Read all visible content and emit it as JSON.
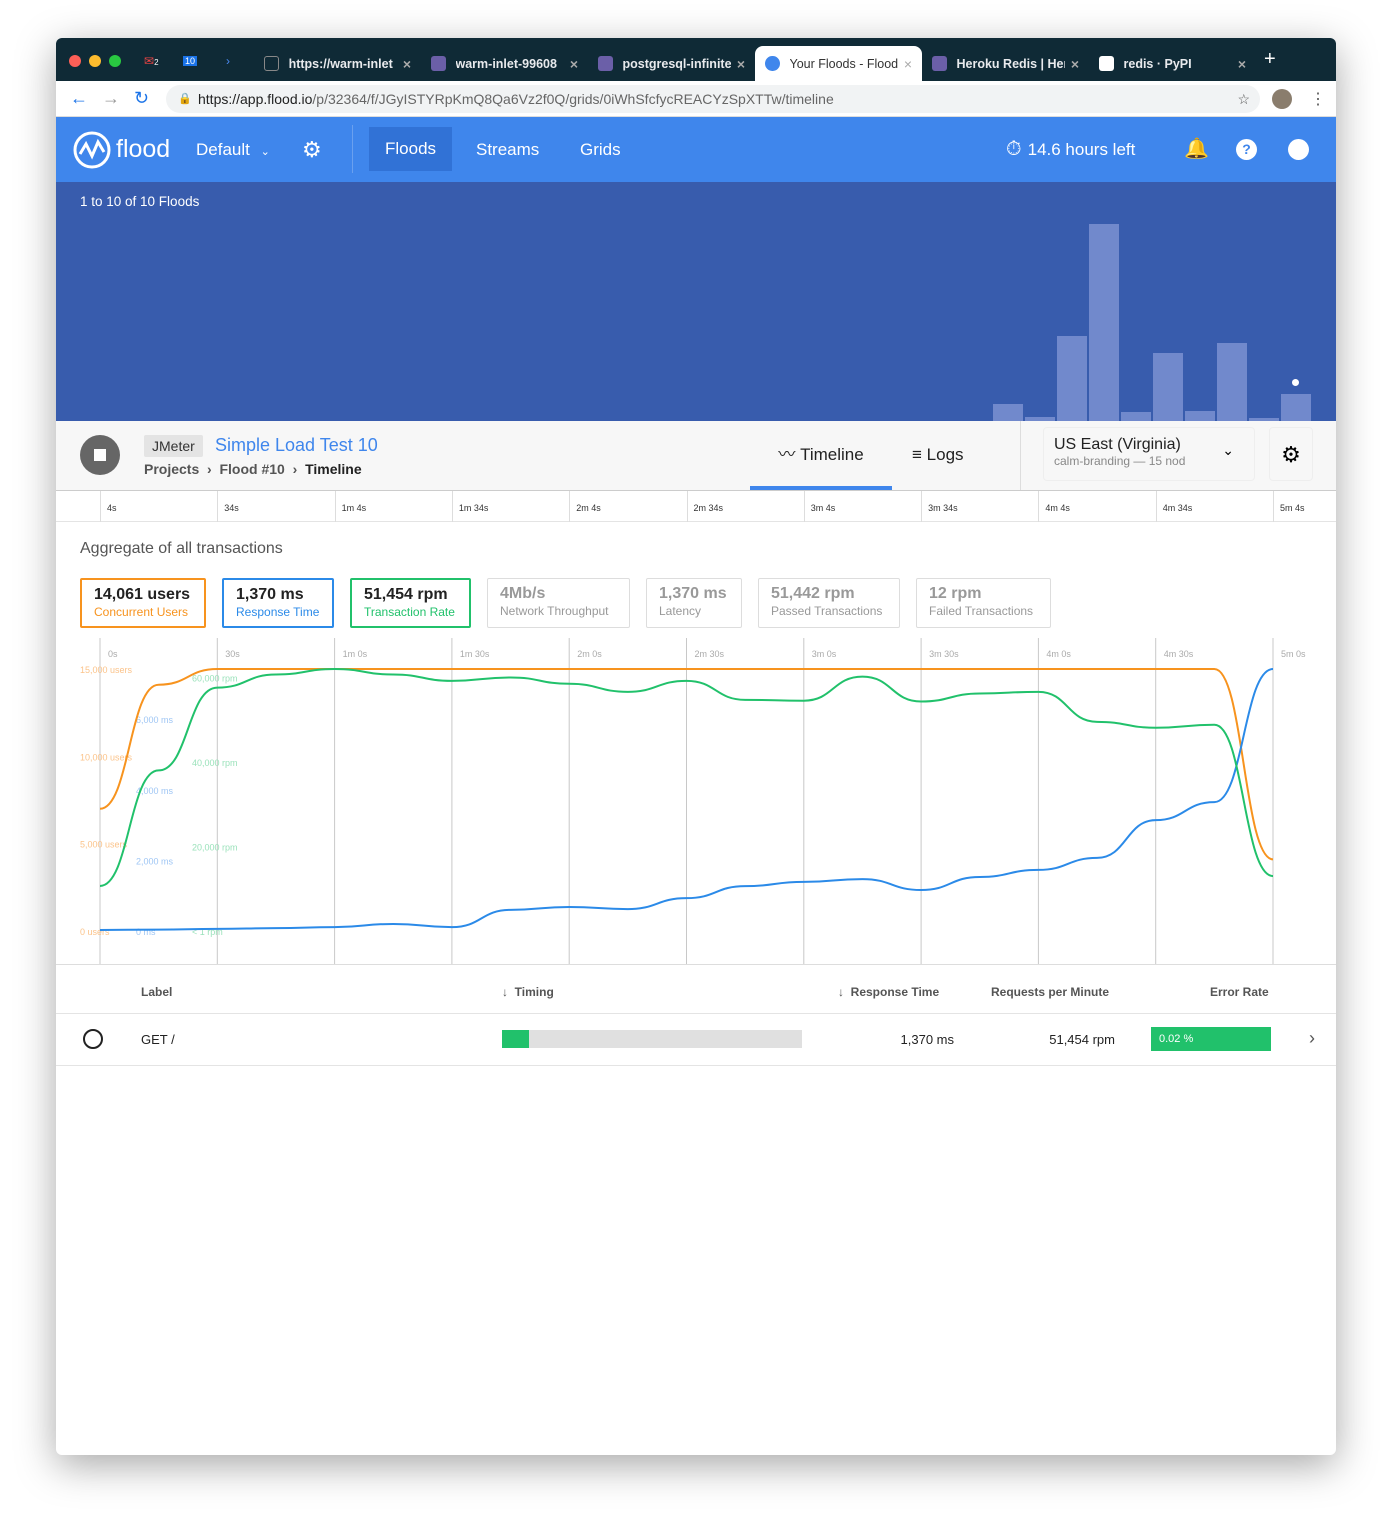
{
  "browser": {
    "pinned": [
      {
        "name": "gmail",
        "badge": "2"
      },
      {
        "name": "calendar",
        "badge": "10"
      },
      {
        "name": "terminal",
        "badge": ""
      }
    ],
    "tabs": [
      {
        "title": "https://warm-inlet",
        "icon": "page-icon",
        "active": false
      },
      {
        "title": "warm-inlet-99608",
        "icon": "heroku-icon",
        "active": false
      },
      {
        "title": "postgresql-infinite",
        "icon": "heroku-icon",
        "active": false
      },
      {
        "title": "Your Floods - Flood",
        "icon": "flood-icon",
        "active": true
      },
      {
        "title": "Heroku Redis | Her",
        "icon": "heroku-icon",
        "active": false
      },
      {
        "title": "redis · PyPI",
        "icon": "pypi-icon",
        "active": false
      }
    ],
    "url_host": "https://app.flood.io",
    "url_path": "/p/32364/f/JGyISTYRpKmQ8Qa6Vz2f0Q/grids/0iWhSfcfycREACYzSpXTTw/timeline"
  },
  "header": {
    "logo": "flood",
    "project": "Default",
    "nav": [
      "Floods",
      "Streams",
      "Grids"
    ],
    "active_nav": "Floods",
    "time_left": "14.6 hours left"
  },
  "banner": {
    "count_text": "1 to 10 of 10 Floods",
    "histogram": [
      17,
      4,
      85,
      197,
      9,
      68,
      10,
      78,
      3,
      27
    ]
  },
  "flood": {
    "tool": "JMeter",
    "name": "Simple Load Test 10",
    "breadcrumb": [
      "Projects",
      "Flood #10",
      "Timeline"
    ],
    "tabs": [
      "Timeline",
      "Logs"
    ],
    "active_tab": "Timeline",
    "region": "US East (Virginia)",
    "grid": "calm-branding — 15 nod"
  },
  "ruler": [
    "4s",
    "34s",
    "1m 4s",
    "1m 34s",
    "2m 4s",
    "2m 34s",
    "3m 4s",
    "3m 34s",
    "4m 4s",
    "4m 34s",
    "5m 4s"
  ],
  "aggregate_title": "Aggregate of all transactions",
  "stats": [
    {
      "value": "14,061 users",
      "label": "Concurrent Users",
      "color": "#f7931e"
    },
    {
      "value": "1,370 ms",
      "label": "Response Time",
      "color": "#2b8ae8"
    },
    {
      "value": "51,454 rpm",
      "label": "Transaction Rate",
      "color": "#21c16b"
    },
    {
      "value": "4Mb/s",
      "label": "Network Throughput",
      "color": ""
    },
    {
      "value": "1,370 ms",
      "label": "Latency",
      "color": ""
    },
    {
      "value": "51,442 rpm",
      "label": "Passed Transactions",
      "color": ""
    },
    {
      "value": "12 rpm",
      "label": "Failed Transactions",
      "color": ""
    }
  ],
  "chart_data": {
    "type": "line",
    "x_ticks": [
      "0s",
      "30s",
      "1m 0s",
      "1m 30s",
      "2m 0s",
      "2m 30s",
      "3m 0s",
      "3m 30s",
      "4m 0s",
      "4m 30s",
      "5m 0s"
    ],
    "xlim": [
      0,
      300
    ],
    "x": [
      0,
      15,
      30,
      45,
      60,
      75,
      90,
      105,
      120,
      135,
      150,
      165,
      180,
      195,
      210,
      225,
      240,
      255,
      270,
      285,
      300
    ],
    "series": [
      {
        "axis": "users",
        "color": "#f7931e",
        "ticks": [
          "0 users",
          "5,000 users",
          "10,000 users",
          "15,000 users"
        ],
        "ylim": [
          0,
          15000
        ],
        "values": [
          7000,
          14100,
          15000,
          15000,
          15000,
          15000,
          15000,
          15000,
          15000,
          15000,
          15000,
          15000,
          15000,
          15000,
          15000,
          15000,
          15000,
          15000,
          15000,
          15000,
          4100
        ]
      },
      {
        "axis": "ms",
        "color": "#2b8ae8",
        "ticks": [
          "0 ms",
          "2,000 ms",
          "4,000 ms",
          "6,000 ms"
        ],
        "ylim": [
          0,
          7420
        ],
        "values": [
          30,
          40,
          60,
          80,
          110,
          200,
          110,
          600,
          680,
          620,
          930,
          1270,
          1390,
          1470,
          1160,
          1530,
          1730,
          2070,
          3140,
          3650,
          7420
        ]
      },
      {
        "axis": "rpm",
        "color": "#21c16b",
        "ticks": [
          "< 1 rpm",
          "20,000 rpm",
          "40,000 rpm",
          "60,000 rpm"
        ],
        "ylim": [
          0,
          62000
        ],
        "values": [
          10660,
          38000,
          57600,
          60700,
          62000,
          60700,
          59200,
          60000,
          58500,
          56600,
          59200,
          54700,
          54500,
          60200,
          54300,
          56200,
          56600,
          49500,
          48100,
          48800,
          13000
        ]
      }
    ]
  },
  "table": {
    "headers": [
      "Label",
      "Timing",
      "Response Time",
      "Requests per Minute",
      "Error Rate"
    ],
    "rows": [
      {
        "label": "GET /",
        "timing_fraction": 0.09,
        "response_time": "1,370 ms",
        "rpm": "51,454 rpm",
        "error_rate": "0.02 %"
      }
    ]
  }
}
